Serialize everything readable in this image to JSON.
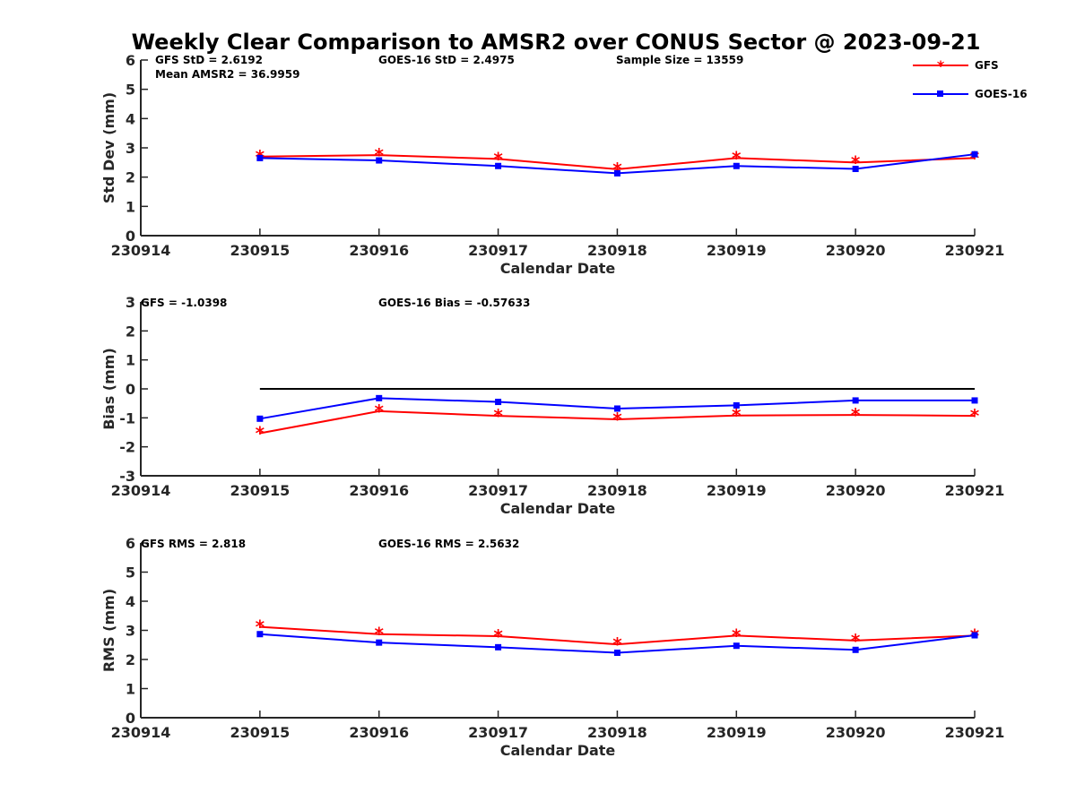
{
  "figure": {
    "title": "Weekly Clear Comparison to AMSR2 over CONUS Sector @ 2023-09-21",
    "legend": [
      {
        "label": "GFS",
        "color": "#ff0000",
        "marker": "asterisk",
        "position": "top-right"
      },
      {
        "label": "GOES-16",
        "color": "#0000ff",
        "marker": "square",
        "position": "top-right"
      }
    ]
  },
  "chart_data": [
    {
      "type": "line",
      "title": "Weekly Clear Comparison to AMSR2 over CONUS Sector @ 2023-09-21",
      "xlabel": "Calendar Date",
      "ylabel": "Std Dev (mm)",
      "xlim": [
        230914,
        230921
      ],
      "ylim": [
        0,
        6
      ],
      "x_ticks": [
        "230914",
        "230915",
        "230916",
        "230917",
        "230918",
        "230919",
        "230920",
        "230921"
      ],
      "y_ticks": [
        "0",
        "1",
        "2",
        "3",
        "4",
        "5",
        "6"
      ],
      "annotations": [
        "GFS StD = 2.6192",
        "Mean AMSR2 = 36.9959",
        "GOES-16 StD = 2.4975",
        "Sample Size = 13559"
      ],
      "x": [
        230915,
        230916,
        230917,
        230918,
        230919,
        230920,
        230921
      ],
      "series": [
        {
          "name": "GFS",
          "color": "#ff0000",
          "marker": "asterisk",
          "values": [
            2.7,
            2.75,
            2.62,
            2.27,
            2.65,
            2.5,
            2.65
          ]
        },
        {
          "name": "GOES-16",
          "color": "#0000ff",
          "marker": "square",
          "values": [
            2.65,
            2.57,
            2.38,
            2.13,
            2.38,
            2.28,
            2.78
          ]
        }
      ],
      "legend": "top-right",
      "grid": false
    },
    {
      "type": "line",
      "xlabel": "Calendar Date",
      "ylabel": "Bias (mm)",
      "xlim": [
        230914,
        230921
      ],
      "ylim": [
        -3,
        3
      ],
      "x_ticks": [
        "230914",
        "230915",
        "230916",
        "230917",
        "230918",
        "230919",
        "230920",
        "230921"
      ],
      "y_ticks": [
        "-3",
        "-2",
        "-1",
        "0",
        "1",
        "2",
        "3"
      ],
      "annotations": [
        "GFS = -1.0398",
        "GOES-16 Bias  = -0.57633"
      ],
      "x": [
        230915,
        230916,
        230917,
        230918,
        230919,
        230920,
        230921
      ],
      "zero_line": {
        "value": 0,
        "color": "#000000",
        "x_range": [
          230915,
          230921
        ]
      },
      "series": [
        {
          "name": "GFS",
          "color": "#ff0000",
          "marker": "asterisk",
          "values": [
            -1.53,
            -0.77,
            -0.93,
            -1.05,
            -0.92,
            -0.9,
            -0.93
          ]
        },
        {
          "name": "GOES-16",
          "color": "#0000ff",
          "marker": "square",
          "values": [
            -1.03,
            -0.32,
            -0.45,
            -0.68,
            -0.57,
            -0.4,
            -0.4
          ]
        }
      ],
      "grid": false
    },
    {
      "type": "line",
      "xlabel": "Calendar Date",
      "ylabel": "RMS (mm)",
      "xlim": [
        230914,
        230921
      ],
      "ylim": [
        0,
        6
      ],
      "x_ticks": [
        "230914",
        "230915",
        "230916",
        "230917",
        "230918",
        "230919",
        "230920",
        "230921"
      ],
      "y_ticks": [
        "0",
        "1",
        "2",
        "3",
        "4",
        "5",
        "6"
      ],
      "annotations": [
        "GFS RMS = 2.818",
        "GOES-16 RMS = 2.5632"
      ],
      "x": [
        230915,
        230916,
        230917,
        230918,
        230919,
        230920,
        230921
      ],
      "series": [
        {
          "name": "GFS",
          "color": "#ff0000",
          "marker": "asterisk",
          "values": [
            3.12,
            2.87,
            2.8,
            2.52,
            2.82,
            2.65,
            2.82
          ]
        },
        {
          "name": "GOES-16",
          "color": "#0000ff",
          "marker": "square",
          "values": [
            2.87,
            2.58,
            2.42,
            2.23,
            2.47,
            2.33,
            2.83
          ]
        }
      ],
      "grid": false
    }
  ]
}
